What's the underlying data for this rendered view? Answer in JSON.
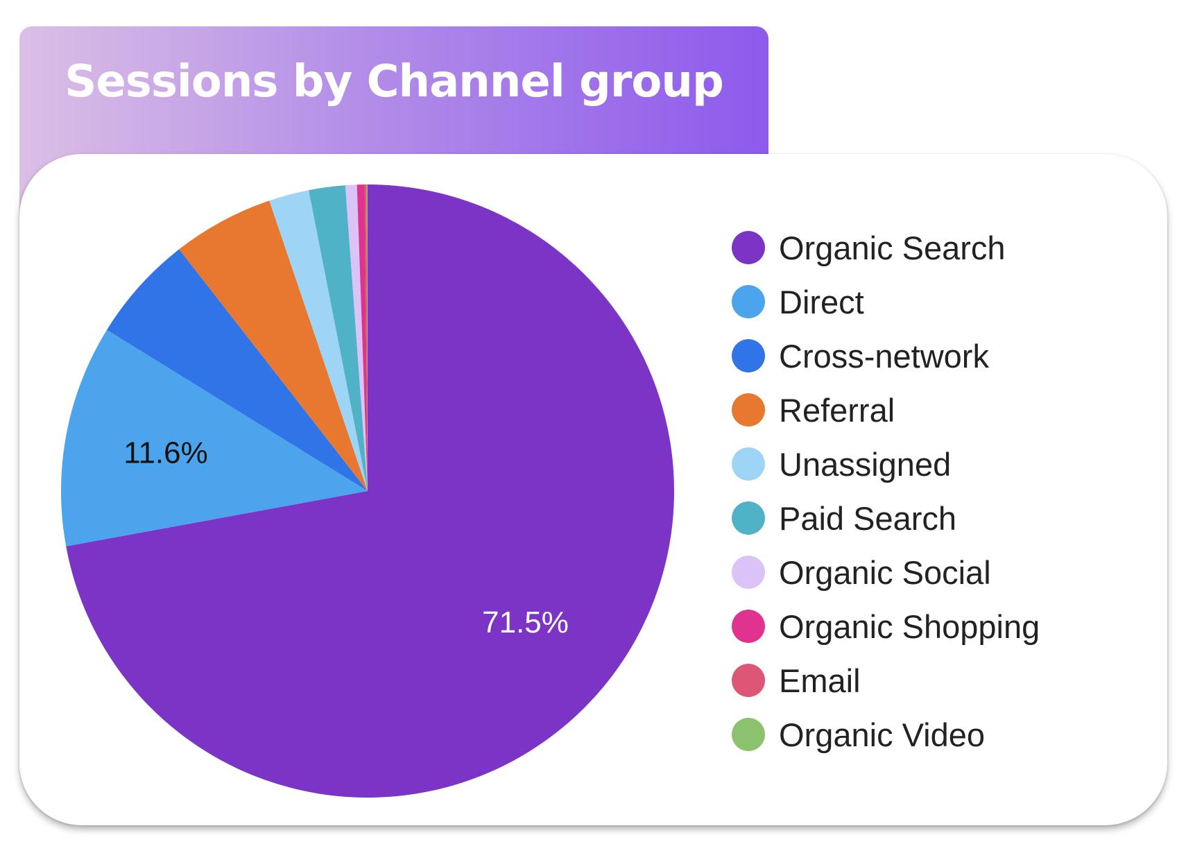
{
  "chart_data": {
    "type": "pie",
    "title": "Sessions by Channel group",
    "slices": [
      {
        "name": "Organic Search",
        "value": 71.5,
        "color": "#7b34c6",
        "label": "71.5%",
        "label_color": "#ffffff"
      },
      {
        "name": "Direct",
        "value": 11.6,
        "color": "#4ba4ec",
        "label": "11.6%",
        "label_color": "#111111"
      },
      {
        "name": "Cross-network",
        "value": 5.6,
        "color": "#3074e8"
      },
      {
        "name": "Referral",
        "value": 5.3,
        "color": "#e8772f"
      },
      {
        "name": "Unassigned",
        "value": 2.1,
        "color": "#9ed4f6"
      },
      {
        "name": "Paid Search",
        "value": 1.9,
        "color": "#4fb2c6"
      },
      {
        "name": "Organic Social",
        "value": 0.6,
        "color": "#dcc3f7"
      },
      {
        "name": "Organic Shopping",
        "value": 0.4,
        "color": "#e0338f"
      },
      {
        "name": "Email",
        "value": 0.1,
        "color": "#dd5676"
      },
      {
        "name": "Organic Video",
        "value": 0.05,
        "color": "#8cc26e"
      }
    ],
    "legend_position": "right"
  }
}
